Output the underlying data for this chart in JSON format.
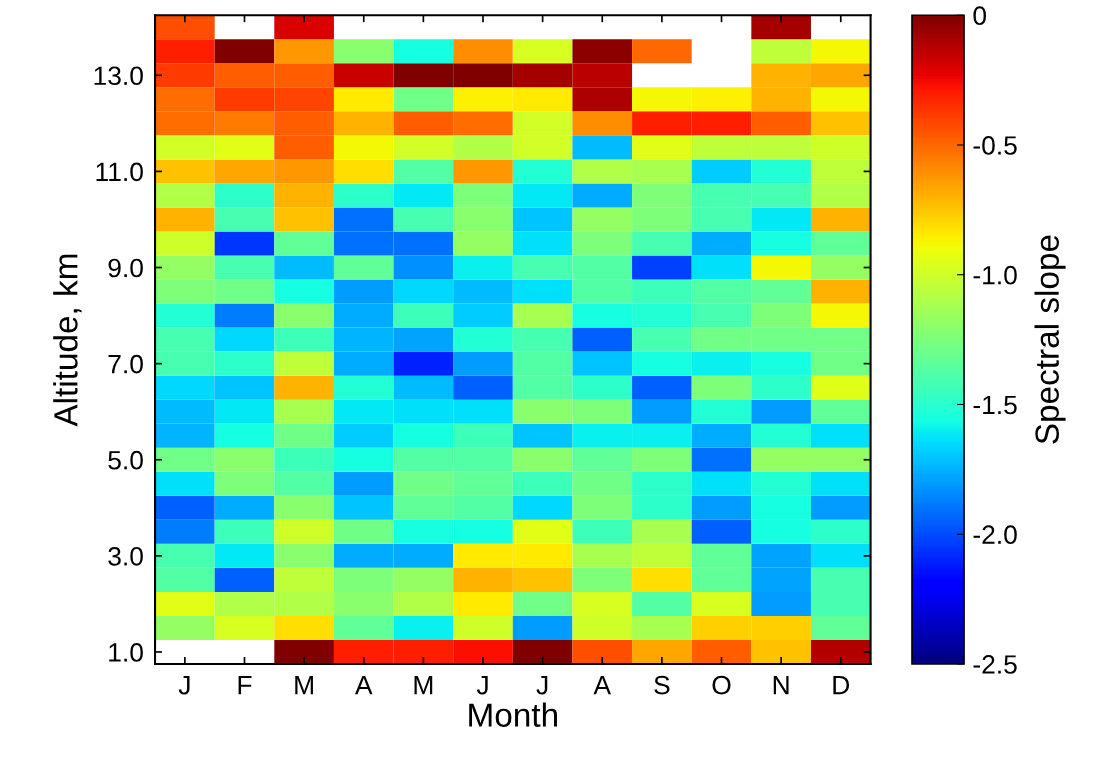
{
  "chart_data": {
    "type": "heatmap",
    "xlabel": "Month",
    "ylabel": "Altitude, km",
    "clabel": "Spectral slope",
    "categories": [
      "J",
      "F",
      "M",
      "A",
      "M",
      "J",
      "J",
      "A",
      "S",
      "O",
      "N",
      "D"
    ],
    "y_categories": [
      null,
      null,
      "13.0",
      null,
      null,
      null,
      "11.0",
      null,
      null,
      null,
      "9.0",
      null,
      null,
      null,
      "7.0",
      null,
      null,
      null,
      "5.0",
      null,
      null,
      null,
      "3.0",
      null,
      null,
      null,
      "1.0"
    ],
    "clim": [
      -2.5,
      0
    ],
    "cticks": [
      -2.5,
      {
        "value": -2,
        "label": "-2.0"
      },
      -1.5,
      {
        "value": -1,
        "label": "-1.0"
      },
      -0.5,
      0
    ],
    "cells": [
      [
        -0.43,
        null,
        -0.2,
        null,
        null,
        null,
        null,
        null,
        null,
        null,
        -0.08,
        null
      ],
      [
        -0.31,
        0,
        -0.63,
        -1.21,
        -1.56,
        -0.6,
        -0.97,
        -0.03,
        -0.5,
        null,
        -1.05,
        -0.88
      ],
      [
        -0.39,
        -0.47,
        -0.47,
        -0.16,
        0,
        0,
        -0.08,
        -0.13,
        null,
        null,
        -0.7,
        -0.67
      ],
      [
        -0.51,
        -0.39,
        -0.41,
        -0.84,
        -1.28,
        -0.86,
        -0.84,
        -0.1,
        -0.88,
        -0.86,
        -0.7,
        -0.88
      ],
      [
        -0.51,
        -0.55,
        -0.47,
        -0.7,
        -0.47,
        -0.51,
        -0.99,
        -0.6,
        -0.31,
        -0.31,
        -0.47,
        -0.74
      ],
      [
        -0.99,
        -0.94,
        -0.47,
        -0.88,
        -0.99,
        -1.09,
        -0.99,
        -1.72,
        -0.94,
        -1.05,
        -1.05,
        -1.0
      ],
      [
        -0.74,
        -0.67,
        -0.63,
        -0.82,
        -1.37,
        -0.63,
        -1.52,
        -1.09,
        -1.12,
        -1.68,
        -1.52,
        -1.05
      ],
      [
        -1.09,
        -1.49,
        -0.7,
        -1.49,
        -1.62,
        -1.25,
        -1.62,
        -1.76,
        -1.25,
        -1.41,
        -1.41,
        -1.09
      ],
      [
        -0.7,
        -1.41,
        -0.74,
        -1.91,
        -1.41,
        -1.21,
        -1.7,
        -1.18,
        -1.25,
        -1.41,
        -1.62,
        -0.7
      ],
      [
        -1.0,
        -2.06,
        -1.33,
        -1.91,
        -1.91,
        -1.18,
        -1.64,
        -1.25,
        -1.41,
        -1.76,
        -1.56,
        -1.33
      ],
      [
        -1.18,
        -1.41,
        -1.72,
        -1.33,
        -1.83,
        -1.6,
        -1.41,
        -1.37,
        -2.03,
        -1.64,
        -0.88,
        -1.18
      ],
      [
        -1.25,
        -1.28,
        -1.56,
        -1.8,
        -1.66,
        -1.72,
        -1.64,
        -1.37,
        -1.44,
        -1.37,
        -1.33,
        -0.7
      ],
      [
        -1.52,
        -1.88,
        -1.21,
        -1.76,
        -1.44,
        -1.68,
        -1.12,
        -1.56,
        -1.52,
        -1.41,
        -1.25,
        -0.88
      ],
      [
        -1.41,
        -1.66,
        -1.44,
        -1.74,
        -1.78,
        -1.52,
        -1.41,
        -1.95,
        -1.41,
        -1.28,
        -1.28,
        -1.28
      ],
      [
        -1.41,
        -1.49,
        -1.05,
        -1.76,
        -2.1,
        -1.8,
        -1.37,
        -1.7,
        -1.56,
        -1.6,
        -1.56,
        -1.28
      ],
      [
        -1.66,
        -1.7,
        -0.7,
        -1.52,
        -1.72,
        -1.95,
        -1.37,
        -1.49,
        -1.95,
        -1.25,
        -1.49,
        -0.94
      ],
      [
        -1.72,
        -1.62,
        -1.12,
        -1.62,
        -1.64,
        -1.64,
        -1.21,
        -1.25,
        -1.8,
        -1.52,
        -1.8,
        -1.33
      ],
      [
        -1.74,
        -1.56,
        -1.28,
        -1.68,
        -1.56,
        -1.44,
        -1.7,
        -1.6,
        -1.6,
        -1.76,
        -1.52,
        -1.64
      ],
      [
        -1.28,
        -1.21,
        -1.44,
        -1.56,
        -1.37,
        -1.37,
        -1.21,
        -1.33,
        -1.25,
        -1.91,
        -1.18,
        -1.18
      ],
      [
        -1.64,
        -1.25,
        -1.37,
        -1.8,
        -1.28,
        -1.33,
        -1.44,
        -1.28,
        -1.49,
        -1.64,
        -1.52,
        -1.64
      ],
      [
        -1.95,
        -1.76,
        -1.21,
        -1.7,
        -1.33,
        -1.37,
        -1.66,
        -1.25,
        -1.49,
        -1.8,
        -1.56,
        -1.8
      ],
      [
        -1.88,
        -1.44,
        -1.0,
        -1.28,
        -1.56,
        -1.56,
        -0.94,
        -1.44,
        -1.12,
        -1.95,
        -1.56,
        -1.49
      ],
      [
        -1.41,
        -1.62,
        -1.21,
        -1.76,
        -1.76,
        -0.84,
        -0.84,
        -1.12,
        -1.05,
        -1.33,
        -1.78,
        -1.64
      ],
      [
        -1.37,
        -1.95,
        -1.05,
        -1.25,
        -1.18,
        -0.7,
        -0.74,
        -1.25,
        -0.82,
        -1.33,
        -1.78,
        -1.41
      ],
      [
        -0.94,
        -1.09,
        -1.09,
        -1.21,
        -1.09,
        -0.84,
        -1.28,
        -0.97,
        -1.37,
        -0.97,
        -1.8,
        -1.41
      ],
      [
        -1.18,
        -0.97,
        -0.82,
        -1.33,
        -1.6,
        -1.0,
        -1.8,
        -1.0,
        -1.12,
        -0.78,
        -0.78,
        -1.33
      ],
      [
        null,
        null,
        0,
        -0.31,
        -0.31,
        -0.27,
        0,
        -0.43,
        -0.67,
        -0.47,
        -0.74,
        -0.11
      ]
    ]
  }
}
